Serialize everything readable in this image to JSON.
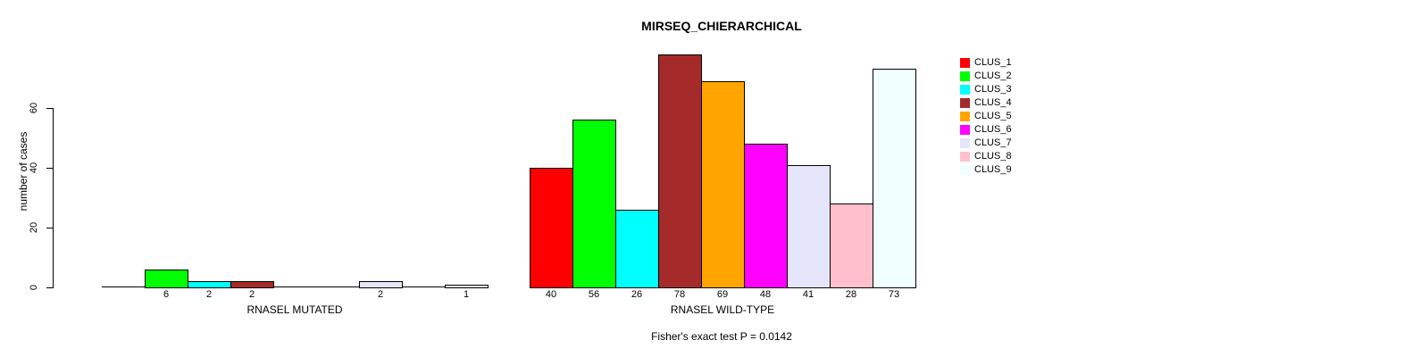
{
  "chart_data": {
    "type": "bar",
    "title": "MIRSEQ_CHIERARCHICAL",
    "ylabel": "number of cases",
    "footnote": "Fisher's exact test P = 0.0142",
    "y_axis": {
      "ticks": [
        0,
        20,
        40,
        60
      ],
      "range": [
        0,
        60
      ],
      "grid": false
    },
    "clusters": [
      {
        "name": "CLUS_1",
        "color": "#FF0000"
      },
      {
        "name": "CLUS_2",
        "color": "#00FF00"
      },
      {
        "name": "CLUS_3",
        "color": "#00FFFF"
      },
      {
        "name": "CLUS_4",
        "color": "#A52A2A"
      },
      {
        "name": "CLUS_5",
        "color": "#FFA500"
      },
      {
        "name": "CLUS_6",
        "color": "#FF00FF"
      },
      {
        "name": "CLUS_7",
        "color": "#E6E6FA"
      },
      {
        "name": "CLUS_8",
        "color": "#FFC0CB"
      },
      {
        "name": "CLUS_9",
        "color": "#F0FFFF"
      }
    ],
    "groups": [
      {
        "label": "RNASEL MUTATED",
        "values": [
          0,
          6,
          2,
          2,
          0,
          0,
          2,
          0,
          1
        ]
      },
      {
        "label": "RNASEL WILD-TYPE",
        "values": [
          40,
          56,
          26,
          78,
          69,
          48,
          41,
          28,
          73
        ]
      }
    ],
    "legend_position": "right",
    "axis_color": "#000000",
    "show_value_labels_for_zero": false
  }
}
